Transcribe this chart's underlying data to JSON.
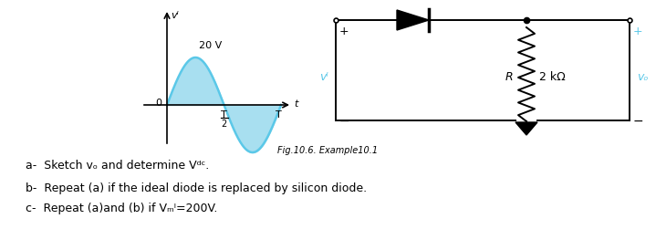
{
  "bg_color": "#ffffff",
  "sine_color": "#5bc8e8",
  "sine_fill_pos_color": "#a8dff0",
  "sine_fill_neg_color": "#a8dff0",
  "circuit_color": "#000000",
  "text_color": "#000000",
  "cyan_text_color": "#5bc8e8",
  "fig_caption": "Fig.10.6. Example10.1",
  "line_a": "a-  Sketch vₒ and determine Vᵈᶜ.",
  "line_b": "b-  Repeat (a) if the ideal diode is replaced by silicon diode.",
  "line_c": "c-  Repeat (a)and (b) if Vₘᴵ=200V.",
  "label_vi_graph": "vᴵ",
  "label_20V": "20 V",
  "label_0": "0",
  "label_T2_num": "T",
  "label_T2_den": "2",
  "label_T": "T",
  "label_t": "t",
  "label_vi_circuit": "vᴵ",
  "label_R": "R",
  "label_2kohm": "2 kΩ",
  "label_vo": "vₒ",
  "label_plus": "+",
  "label_minus": "−"
}
